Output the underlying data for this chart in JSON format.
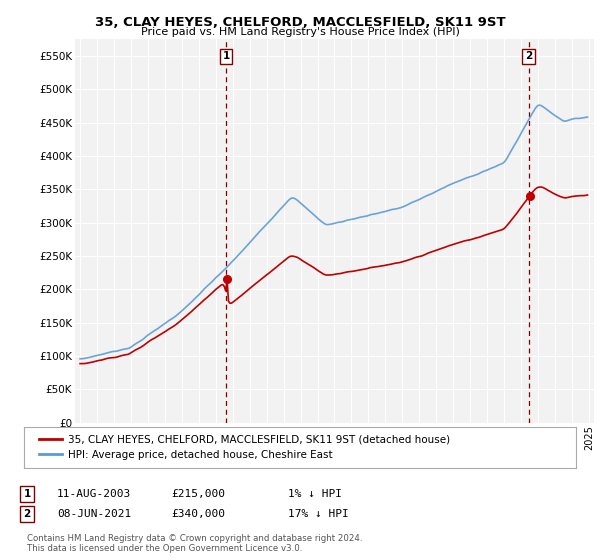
{
  "title": "35, CLAY HEYES, CHELFORD, MACCLESFIELD, SK11 9ST",
  "subtitle": "Price paid vs. HM Land Registry's House Price Index (HPI)",
  "legend_line1": "35, CLAY HEYES, CHELFORD, MACCLESFIELD, SK11 9ST (detached house)",
  "legend_line2": "HPI: Average price, detached house, Cheshire East",
  "annotation1_date": "11-AUG-2003",
  "annotation1_price": "£215,000",
  "annotation1_hpi": "1% ↓ HPI",
  "annotation2_date": "08-JUN-2021",
  "annotation2_price": "£340,000",
  "annotation2_hpi": "17% ↓ HPI",
  "footer1": "Contains HM Land Registry data © Crown copyright and database right 2024.",
  "footer2": "This data is licensed under the Open Government Licence v3.0.",
  "ylim": [
    0,
    575000
  ],
  "yticks": [
    0,
    50000,
    100000,
    150000,
    200000,
    250000,
    300000,
    350000,
    400000,
    450000,
    500000,
    550000
  ],
  "ytick_labels": [
    "£0",
    "£50K",
    "£100K",
    "£150K",
    "£200K",
    "£250K",
    "£300K",
    "£350K",
    "£400K",
    "£450K",
    "£500K",
    "£550K"
  ],
  "sale1_year": 2003.61,
  "sale1_price": 215000,
  "sale2_year": 2021.44,
  "sale2_price": 340000,
  "hpi_color": "#5b9bd5",
  "price_color": "#c00000",
  "vline_color": "#800000",
  "bg_color": "#ffffff",
  "plot_bg_color": "#f2f2f2",
  "grid_color": "#ffffff",
  "xlim_left": 1994.7,
  "xlim_right": 2025.3
}
